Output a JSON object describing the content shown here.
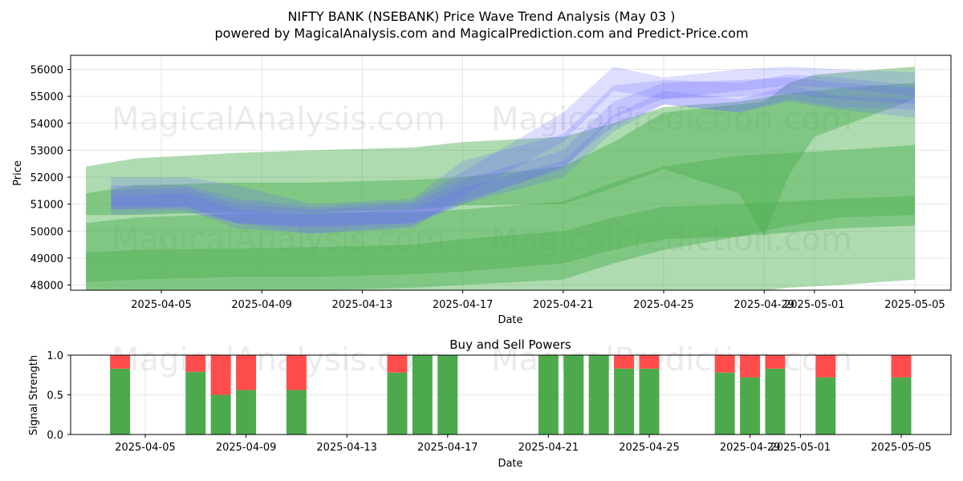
{
  "title_line1": "NIFTY BANK (NSEBANK) Price Wave Trend Analysis (May 03 )",
  "title_line2": "powered by MagicalAnalysis.com and MagicalPrediction.com and Predict-Price.com",
  "watermarks": [
    "MagicalAnalysis.com",
    "MagicalPrediction.com"
  ],
  "colors": {
    "green_band": "#4caf50",
    "blue_band": "#6a6aff",
    "buy": "#4caa4c",
    "sell": "#ff4d4d"
  },
  "chart_data": [
    {
      "type": "area",
      "xlabel": "Date",
      "ylabel": "Price",
      "x_range": [
        "2025-04-02",
        "2025-05-06"
      ],
      "ylim": [
        47800,
        56500
      ],
      "y_ticks": [
        48000,
        49000,
        50000,
        51000,
        52000,
        53000,
        54000,
        55000,
        56000
      ],
      "x_ticks": [
        "2025-04-05",
        "2025-04-09",
        "2025-04-13",
        "2025-04-17",
        "2025-04-21",
        "2025-04-25",
        "2025-04-29",
        "2025-05-01",
        "2025-05-05"
      ],
      "grid": true,
      "green_bands": [
        {
          "x": [
            "2025-04-02",
            "2025-04-04",
            "2025-04-08",
            "2025-04-11",
            "2025-04-15",
            "2025-04-17",
            "2025-04-21",
            "2025-04-23",
            "2025-04-25",
            "2025-04-28",
            "2025-04-30",
            "2025-05-02",
            "2025-05-05"
          ],
          "upper": [
            52400,
            52700,
            52900,
            53000,
            53100,
            53300,
            53500,
            54000,
            54600,
            54800,
            55100,
            55300,
            55500
          ],
          "lower": [
            47300,
            47600,
            47800,
            47800,
            47900,
            48000,
            48200,
            48800,
            49300,
            49800,
            50200,
            50500,
            50600
          ]
        },
        {
          "x": [
            "2025-04-02",
            "2025-04-04",
            "2025-04-08",
            "2025-04-11",
            "2025-04-15",
            "2025-04-17",
            "2025-04-21",
            "2025-04-23",
            "2025-04-25",
            "2025-04-28",
            "2025-04-30",
            "2025-05-02",
            "2025-05-05"
          ],
          "upper": [
            50300,
            50500,
            50650,
            50700,
            50700,
            50800,
            51100,
            51800,
            52400,
            52800,
            52900,
            53000,
            53200
          ],
          "lower": [
            45500,
            45800,
            46000,
            46000,
            46100,
            46300,
            46500,
            47000,
            47400,
            47700,
            47900,
            48000,
            48200
          ]
        },
        {
          "x": [
            "2025-04-02",
            "2025-04-04",
            "2025-04-08",
            "2025-04-11",
            "2025-04-15",
            "2025-04-17",
            "2025-04-21",
            "2025-04-23",
            "2025-04-25",
            "2025-04-28",
            "2025-04-30",
            "2025-05-02",
            "2025-05-05"
          ],
          "upper": [
            49200,
            49300,
            49350,
            49400,
            49500,
            49700,
            50000,
            50500,
            50900,
            51000,
            51100,
            51200,
            51300
          ],
          "lower": [
            48100,
            48200,
            48300,
            48300,
            48400,
            48500,
            48800,
            49300,
            49700,
            49800,
            49950,
            50100,
            50200
          ]
        },
        {
          "x": [
            "2025-04-02",
            "2025-04-04",
            "2025-04-08",
            "2025-04-11",
            "2025-04-15",
            "2025-04-17",
            "2025-04-21",
            "2025-04-23",
            "2025-04-25",
            "2025-04-28",
            "2025-04-29",
            "2025-04-30",
            "2025-05-01",
            "2025-05-05"
          ],
          "upper": [
            51400,
            51700,
            51800,
            51800,
            51900,
            52000,
            52400,
            53300,
            54400,
            54700,
            54800,
            55500,
            55800,
            56100
          ],
          "lower": [
            50600,
            50600,
            50700,
            50700,
            50800,
            50950,
            51000,
            51600,
            52300,
            51400,
            49800,
            52100,
            53500,
            54900
          ]
        }
      ],
      "blue_bands": [
        {
          "x": [
            "2025-04-03",
            "2025-04-06",
            "2025-04-08",
            "2025-04-11",
            "2025-04-15",
            "2025-04-17",
            "2025-04-21",
            "2025-04-23",
            "2025-04-25",
            "2025-04-28",
            "2025-04-30",
            "2025-05-02",
            "2025-05-05"
          ],
          "upper": [
            52000,
            52000,
            51700,
            51000,
            51200,
            52600,
            53600,
            55400,
            55600,
            55500,
            55800,
            55700,
            55400
          ],
          "lower": [
            50600,
            50700,
            50300,
            49900,
            50200,
            51000,
            52400,
            53900,
            54700,
            54400,
            54800,
            54500,
            54200
          ]
        },
        {
          "x": [
            "2025-04-03",
            "2025-04-06",
            "2025-04-08",
            "2025-04-11",
            "2025-04-15",
            "2025-04-17",
            "2025-04-21",
            "2025-04-23",
            "2025-04-25",
            "2025-04-28",
            "2025-04-30",
            "2025-05-02",
            "2025-05-05"
          ],
          "upper": [
            51700,
            51700,
            51200,
            50900,
            51100,
            52200,
            54400,
            56100,
            55700,
            56000,
            56100,
            56000,
            55900
          ],
          "lower": [
            50800,
            50800,
            50100,
            49900,
            50100,
            51300,
            53300,
            55200,
            54900,
            55200,
            55400,
            55300,
            55000
          ]
        },
        {
          "x": [
            "2025-04-03",
            "2025-04-06",
            "2025-04-08",
            "2025-04-11",
            "2025-04-15",
            "2025-04-17",
            "2025-04-21",
            "2025-04-23",
            "2025-04-25",
            "2025-04-28",
            "2025-04-30",
            "2025-05-02",
            "2025-05-05"
          ],
          "upper": [
            51500,
            51600,
            51000,
            50800,
            51000,
            51900,
            53000,
            54800,
            55500,
            55600,
            55700,
            55500,
            55300
          ],
          "lower": [
            50900,
            50900,
            50300,
            50100,
            50300,
            51100,
            52300,
            54200,
            54900,
            55000,
            55100,
            54900,
            54700
          ]
        },
        {
          "x": [
            "2025-04-03",
            "2025-04-06",
            "2025-04-08",
            "2025-04-11",
            "2025-04-15",
            "2025-04-17",
            "2025-04-21",
            "2025-04-23",
            "2025-04-25",
            "2025-04-28",
            "2025-04-30",
            "2025-05-02",
            "2025-05-05"
          ],
          "upper": [
            51300,
            51400,
            50800,
            50600,
            50800,
            51600,
            52600,
            54300,
            55200,
            54900,
            55400,
            55000,
            54900
          ],
          "lower": [
            50800,
            50900,
            50300,
            50200,
            50300,
            51000,
            52000,
            53700,
            54700,
            54400,
            54900,
            54600,
            54500
          ]
        }
      ]
    },
    {
      "type": "bar",
      "title": "Buy and Sell Powers",
      "xlabel": "Date",
      "ylabel": "Signal Strength",
      "ylim": [
        0,
        1
      ],
      "y_ticks": [
        "0.0",
        "0.5",
        "1.0"
      ],
      "x_ticks": [
        "2025-04-05",
        "2025-04-09",
        "2025-04-13",
        "2025-04-17",
        "2025-04-21",
        "2025-04-25",
        "2025-04-29",
        "2025-05-01",
        "2025-05-05"
      ],
      "dates": [
        "2025-04-04",
        "2025-04-07",
        "2025-04-08",
        "2025-04-09",
        "2025-04-11",
        "2025-04-15",
        "2025-04-16",
        "2025-04-17",
        "2025-04-21",
        "2025-04-22",
        "2025-04-23",
        "2025-04-24",
        "2025-04-25",
        "2025-04-28",
        "2025-04-29",
        "2025-04-30",
        "2025-05-02",
        "2025-05-05"
      ],
      "buy": [
        0.83,
        0.79,
        0.5,
        0.56,
        0.56,
        0.78,
        1.0,
        1.0,
        1.0,
        1.0,
        1.0,
        0.83,
        0.83,
        0.78,
        0.72,
        0.83,
        0.72,
        0.72
      ],
      "sell": [
        0.17,
        0.21,
        0.5,
        0.44,
        0.44,
        0.22,
        0.0,
        0.0,
        0.0,
        0.0,
        0.0,
        0.17,
        0.17,
        0.22,
        0.28,
        0.17,
        0.28,
        0.28
      ]
    }
  ]
}
